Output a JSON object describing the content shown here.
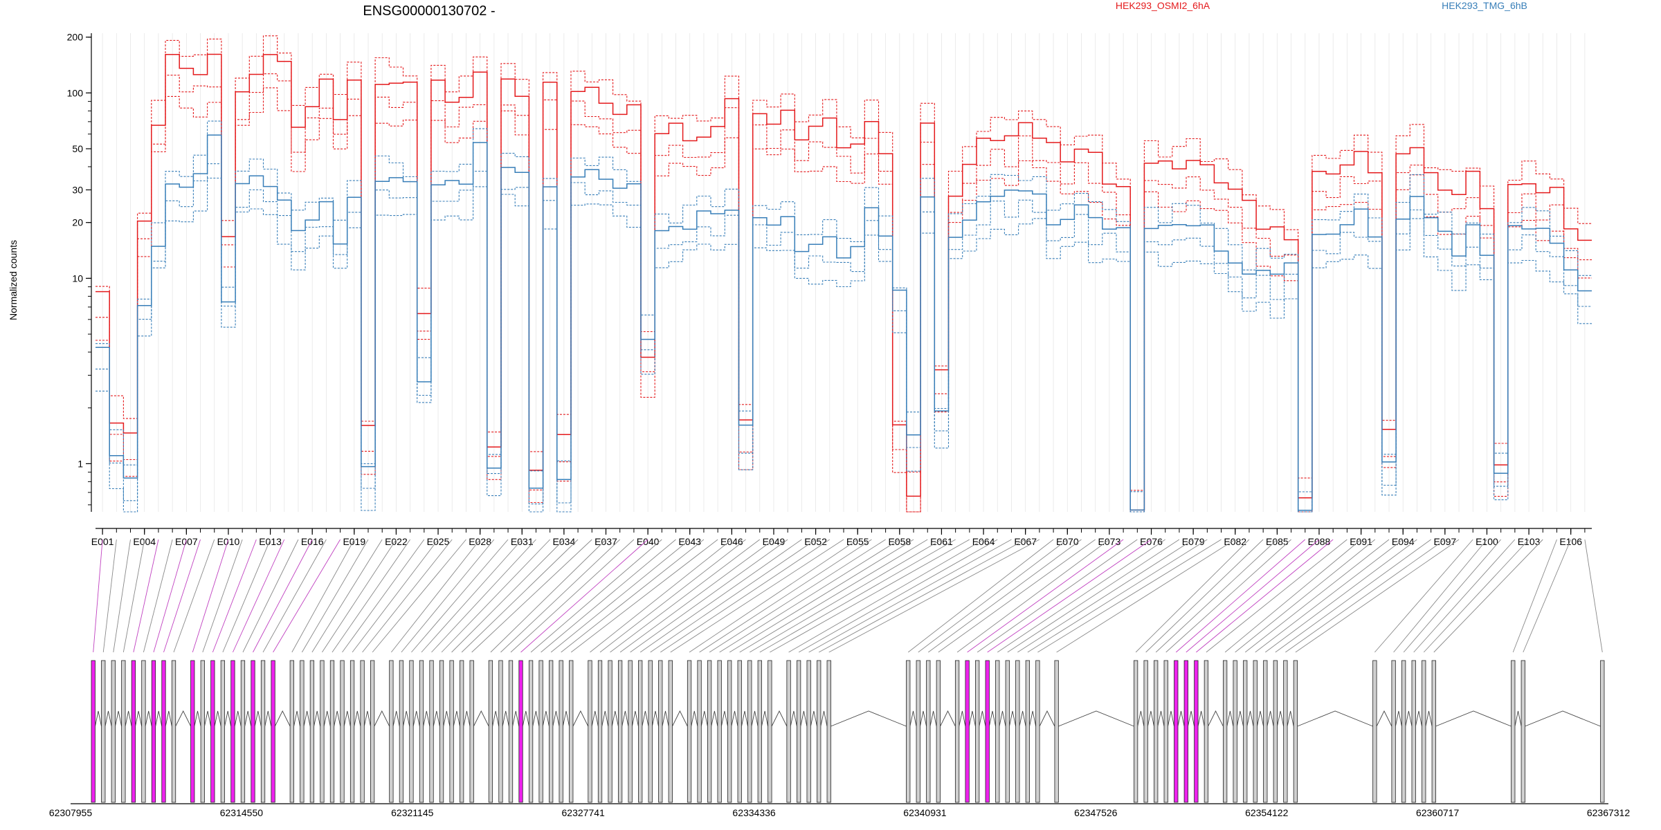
{
  "chart_data": {
    "type": "line",
    "title": "ENSG00000130702 -",
    "xlabel": "",
    "ylabel": "Normalized counts",
    "yscale": "log",
    "ylim": [
      0.55,
      210
    ],
    "y_ticks": [
      1,
      10,
      20,
      30,
      50,
      100,
      200
    ],
    "x_ticks": [
      "E001",
      "E004",
      "E007",
      "E010",
      "E013",
      "E016",
      "E019",
      "E022",
      "E025",
      "E028",
      "E031",
      "E034",
      "E037",
      "E040",
      "E043",
      "E046",
      "E049",
      "E052",
      "E055",
      "E058",
      "E061",
      "E064",
      "E067",
      "E070",
      "E073",
      "E076",
      "E079",
      "E082",
      "E085",
      "E088",
      "E091",
      "E094",
      "E097",
      "E100",
      "E103",
      "E106"
    ],
    "legend_placement": "top",
    "series": [
      {
        "name": "HEK293_OSMI2_6hA",
        "color": "#e41a1c",
        "role": "condition"
      },
      {
        "name": "HEK293_TMG_6hB",
        "color": "#377eb8",
        "role": "condition"
      }
    ],
    "exon_count": 107,
    "highlight_exons": [
      1,
      5,
      7,
      8,
      10,
      12,
      14,
      16,
      18,
      40,
      74,
      76,
      87,
      88,
      89
    ],
    "profile": [
      [
        8,
        4
      ],
      [
        1.8,
        1.2
      ],
      [
        1.4,
        0.8
      ],
      [
        20,
        7
      ],
      [
        72,
        16
      ],
      [
        150,
        30
      ],
      [
        140,
        32
      ],
      [
        130,
        38
      ],
      [
        150,
        55
      ],
      [
        18,
        8
      ],
      [
        100,
        32
      ],
      [
        120,
        34
      ],
      [
        175,
        34
      ],
      [
        140,
        25
      ],
      [
        65,
        18
      ],
      [
        90,
        22
      ],
      [
        110,
        24
      ],
      [
        75,
        16
      ],
      [
        120,
        28
      ],
      [
        1.5,
        0.9
      ],
      [
        120,
        36
      ],
      [
        110,
        34
      ],
      [
        110,
        32
      ],
      [
        7,
        3
      ],
      [
        110,
        30
      ],
      [
        90,
        34
      ],
      [
        100,
        34
      ],
      [
        120,
        50
      ],
      [
        1.3,
        1
      ],
      [
        120,
        40
      ],
      [
        90,
        35
      ],
      [
        1,
        0.8
      ],
      [
        110,
        30
      ],
      [
        1.4,
        0.8
      ],
      [
        110,
        38
      ],
      [
        100,
        36
      ],
      [
        90,
        35
      ],
      [
        80,
        32
      ],
      [
        80,
        30
      ],
      [
        4,
        5
      ],
      [
        60,
        18
      ],
      [
        65,
        18
      ],
      [
        60,
        20
      ],
      [
        55,
        22
      ],
      [
        65,
        22
      ],
      [
        100,
        25
      ],
      [
        1.6,
        1.5
      ],
      [
        80,
        22
      ],
      [
        70,
        20
      ],
      [
        75,
        20
      ],
      [
        60,
        15
      ],
      [
        65,
        15
      ],
      [
        70,
        16
      ],
      [
        55,
        14
      ],
      [
        50,
        14
      ],
      [
        70,
        24
      ],
      [
        50,
        18
      ],
      [
        1.5,
        8
      ],
      [
        0.7,
        1.5
      ],
      [
        70,
        28
      ],
      [
        3,
        1.8
      ],
      [
        30,
        18
      ],
      [
        40,
        20
      ],
      [
        55,
        25
      ],
      [
        60,
        30
      ],
      [
        55,
        28
      ],
      [
        70,
        30
      ],
      [
        60,
        30
      ],
      [
        50,
        18
      ],
      [
        45,
        22
      ],
      [
        50,
        25
      ],
      [
        45,
        20
      ],
      [
        35,
        20
      ],
      [
        30,
        18
      ],
      [
        0.55,
        0.55
      ],
      [
        45,
        20
      ],
      [
        40,
        18
      ],
      [
        40,
        20
      ],
      [
        45,
        20
      ],
      [
        38,
        18
      ],
      [
        35,
        15
      ],
      [
        30,
        12
      ],
      [
        25,
        10
      ],
      [
        20,
        12
      ],
      [
        18,
        10
      ],
      [
        16,
        12
      ],
      [
        0.7,
        0.6
      ],
      [
        35,
        16
      ],
      [
        38,
        18
      ],
      [
        42,
        20
      ],
      [
        45,
        22
      ],
      [
        40,
        18
      ],
      [
        1.5,
        1
      ],
      [
        45,
        20
      ],
      [
        55,
        30
      ],
      [
        35,
        20
      ],
      [
        30,
        18
      ],
      [
        30,
        14
      ],
      [
        35,
        18
      ],
      [
        25,
        14
      ],
      [
        1,
        0.9
      ],
      [
        30,
        18
      ],
      [
        35,
        20
      ],
      [
        28,
        18
      ],
      [
        30,
        15
      ],
      [
        20,
        12
      ],
      [
        15,
        8
      ]
    ],
    "genomic_ticks": [
      "62307955",
      "62314550",
      "62321145",
      "62327741",
      "62334336",
      "62340931",
      "62347526",
      "62354122",
      "62360717",
      "62367312"
    ],
    "genomic_range": [
      62307955,
      62367312
    ]
  }
}
